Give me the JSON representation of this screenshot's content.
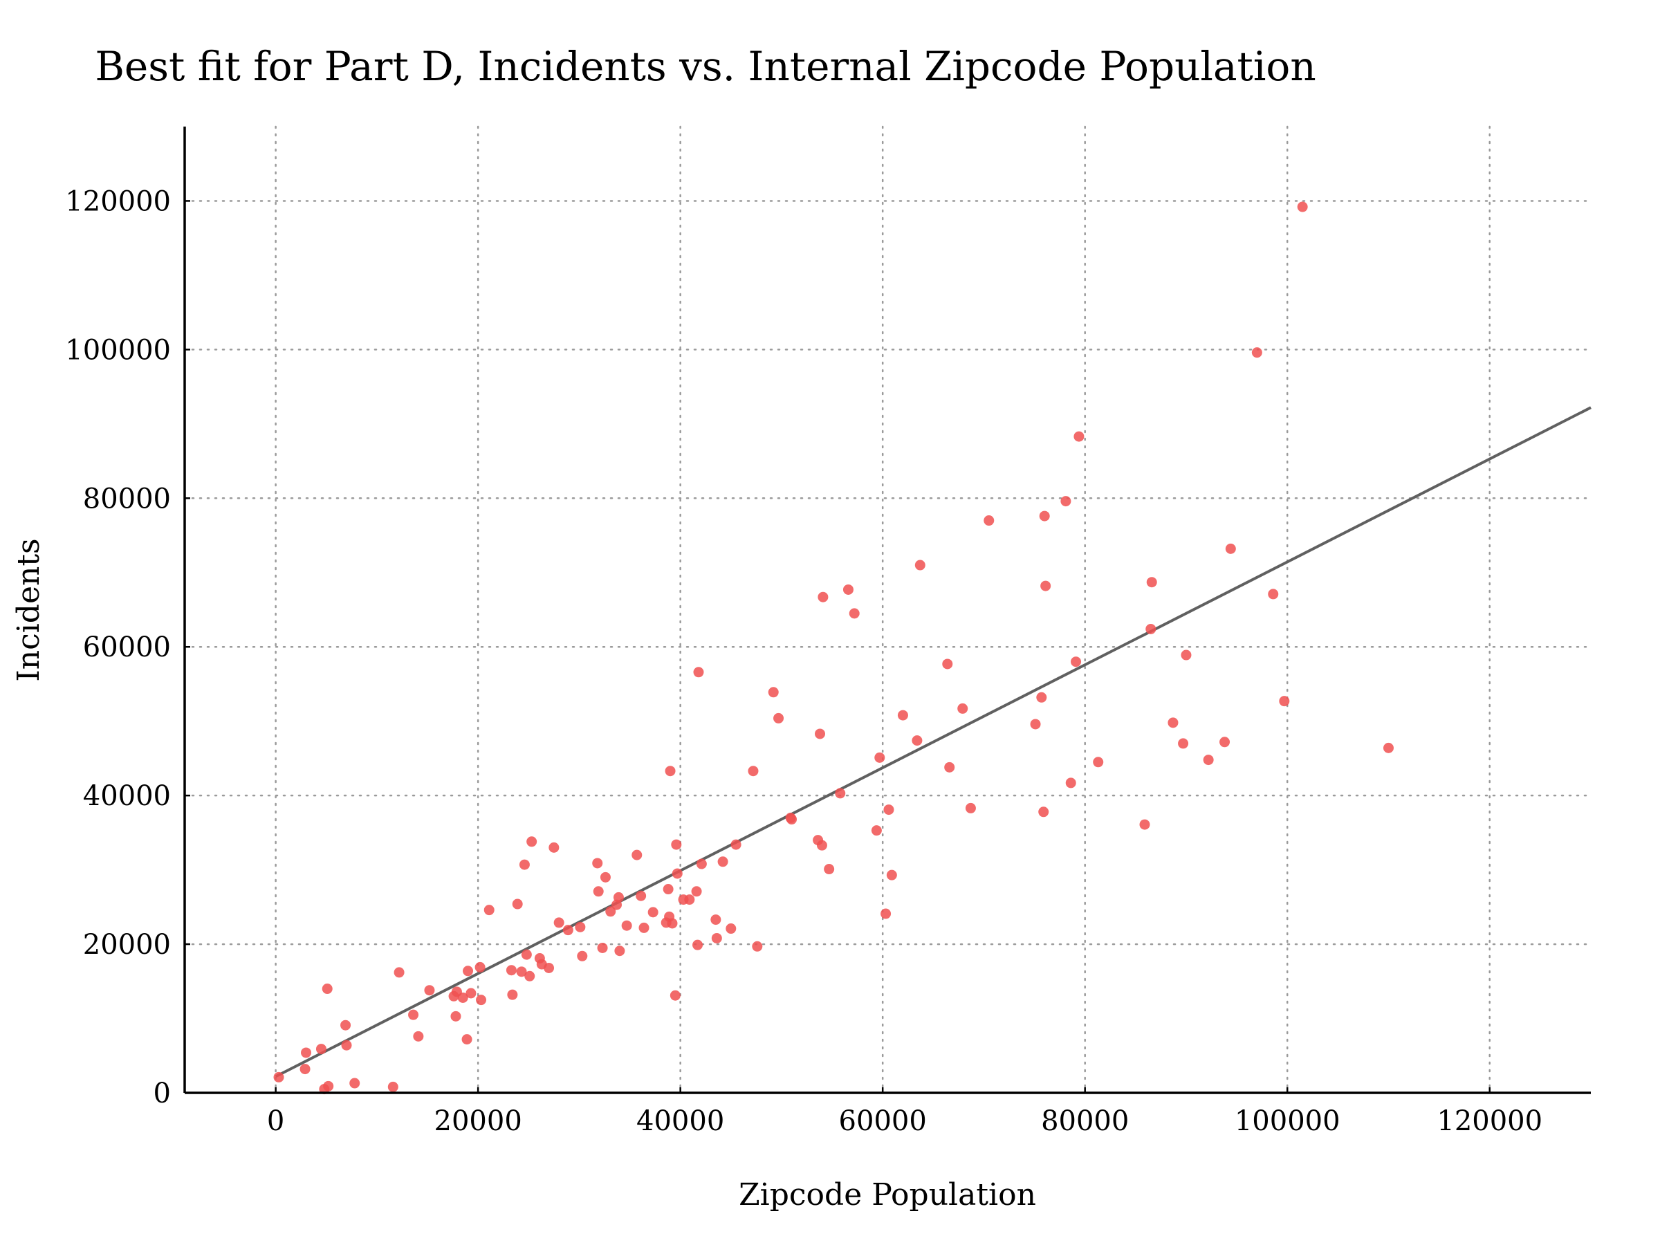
{
  "chart_data": {
    "type": "scatter",
    "title": "Best fit for Part D, Incidents vs. Internal Zipcode Population",
    "xlabel": "Zipcode Population",
    "ylabel": "Incidents",
    "xlim": [
      -9000,
      130000
    ],
    "ylim": [
      0,
      130000
    ],
    "xticks": [
      0,
      20000,
      40000,
      60000,
      80000,
      100000,
      120000
    ],
    "yticks": [
      0,
      20000,
      40000,
      60000,
      80000,
      100000,
      120000
    ],
    "grid": true,
    "colors": {
      "points": "#f05050",
      "fit_line": "#606060",
      "grid": "#9a9a9a",
      "axes": "#000000"
    },
    "series": [
      {
        "kind": "points",
        "x": [
          300,
          3000,
          2900,
          4500,
          4800,
          5200,
          5100,
          6900,
          7000,
          7800,
          11600,
          12200,
          13600,
          14100,
          15200,
          17600,
          17800,
          17900,
          18500,
          18900,
          19000,
          19300,
          20200,
          20300,
          21100,
          23300,
          23400,
          23900,
          24300,
          24600,
          24800,
          25100,
          25300,
          26100,
          26300,
          27000,
          27500,
          28000,
          28900,
          30100,
          30300,
          31800,
          31900,
          32300,
          32600,
          33100,
          33700,
          33900,
          34000,
          34700,
          35700,
          36100,
          36400,
          37300,
          38600,
          38800,
          39000,
          38900,
          39200,
          39500,
          39600,
          39700,
          40300,
          40900,
          41600,
          41700,
          41800,
          42100,
          43500,
          43600,
          44200,
          45000,
          45500,
          47200,
          47600,
          49200,
          49700,
          50900,
          51000,
          53600,
          53800,
          54000,
          54100,
          54700,
          55800,
          56600,
          57200,
          59400,
          59700,
          60300,
          60600,
          60900,
          62000,
          63400,
          63700,
          66400,
          66600,
          67900,
          68700,
          70500,
          75100,
          75700,
          75900,
          76000,
          76100,
          78100,
          78600,
          79100,
          79400,
          81300,
          85900,
          86500,
          86600,
          88700,
          89700,
          90000,
          92200,
          93800,
          94400,
          97000,
          98600,
          99700,
          101500,
          110000
        ],
        "y": [
          2100,
          5400,
          3200,
          5900,
          500,
          900,
          14000,
          9100,
          6400,
          1300,
          800,
          16200,
          10500,
          7600,
          13800,
          13000,
          10300,
          13600,
          12800,
          7200,
          16400,
          13400,
          16900,
          12500,
          24600,
          16500,
          13200,
          25400,
          16300,
          30700,
          18600,
          15700,
          33800,
          18100,
          17300,
          16800,
          33000,
          22900,
          21900,
          22300,
          18400,
          30900,
          27100,
          19500,
          29000,
          24400,
          25300,
          26300,
          19100,
          22500,
          32000,
          26500,
          22200,
          24300,
          22900,
          27400,
          43300,
          23700,
          22800,
          13100,
          33400,
          29500,
          26000,
          26000,
          27100,
          19900,
          56600,
          30800,
          23300,
          20800,
          31100,
          22100,
          33400,
          43300,
          19700,
          53900,
          50400,
          37000,
          36800,
          34000,
          48300,
          33300,
          66700,
          30100,
          40300,
          67700,
          64500,
          35300,
          45100,
          24100,
          38100,
          29300,
          50800,
          47400,
          71000,
          57700,
          43800,
          51700,
          38300,
          77000,
          49600,
          53200,
          37800,
          77600,
          68200,
          79600,
          41700,
          58000,
          88300,
          44500,
          36100,
          62400,
          68700,
          49800,
          47000,
          58900,
          44800,
          47200,
          73200,
          99600,
          67100,
          52700,
          119200,
          46400
        ]
      },
      {
        "kind": "fit-line",
        "x": [
          0,
          130000
        ],
        "y": [
          2200,
          92200
        ]
      }
    ]
  }
}
